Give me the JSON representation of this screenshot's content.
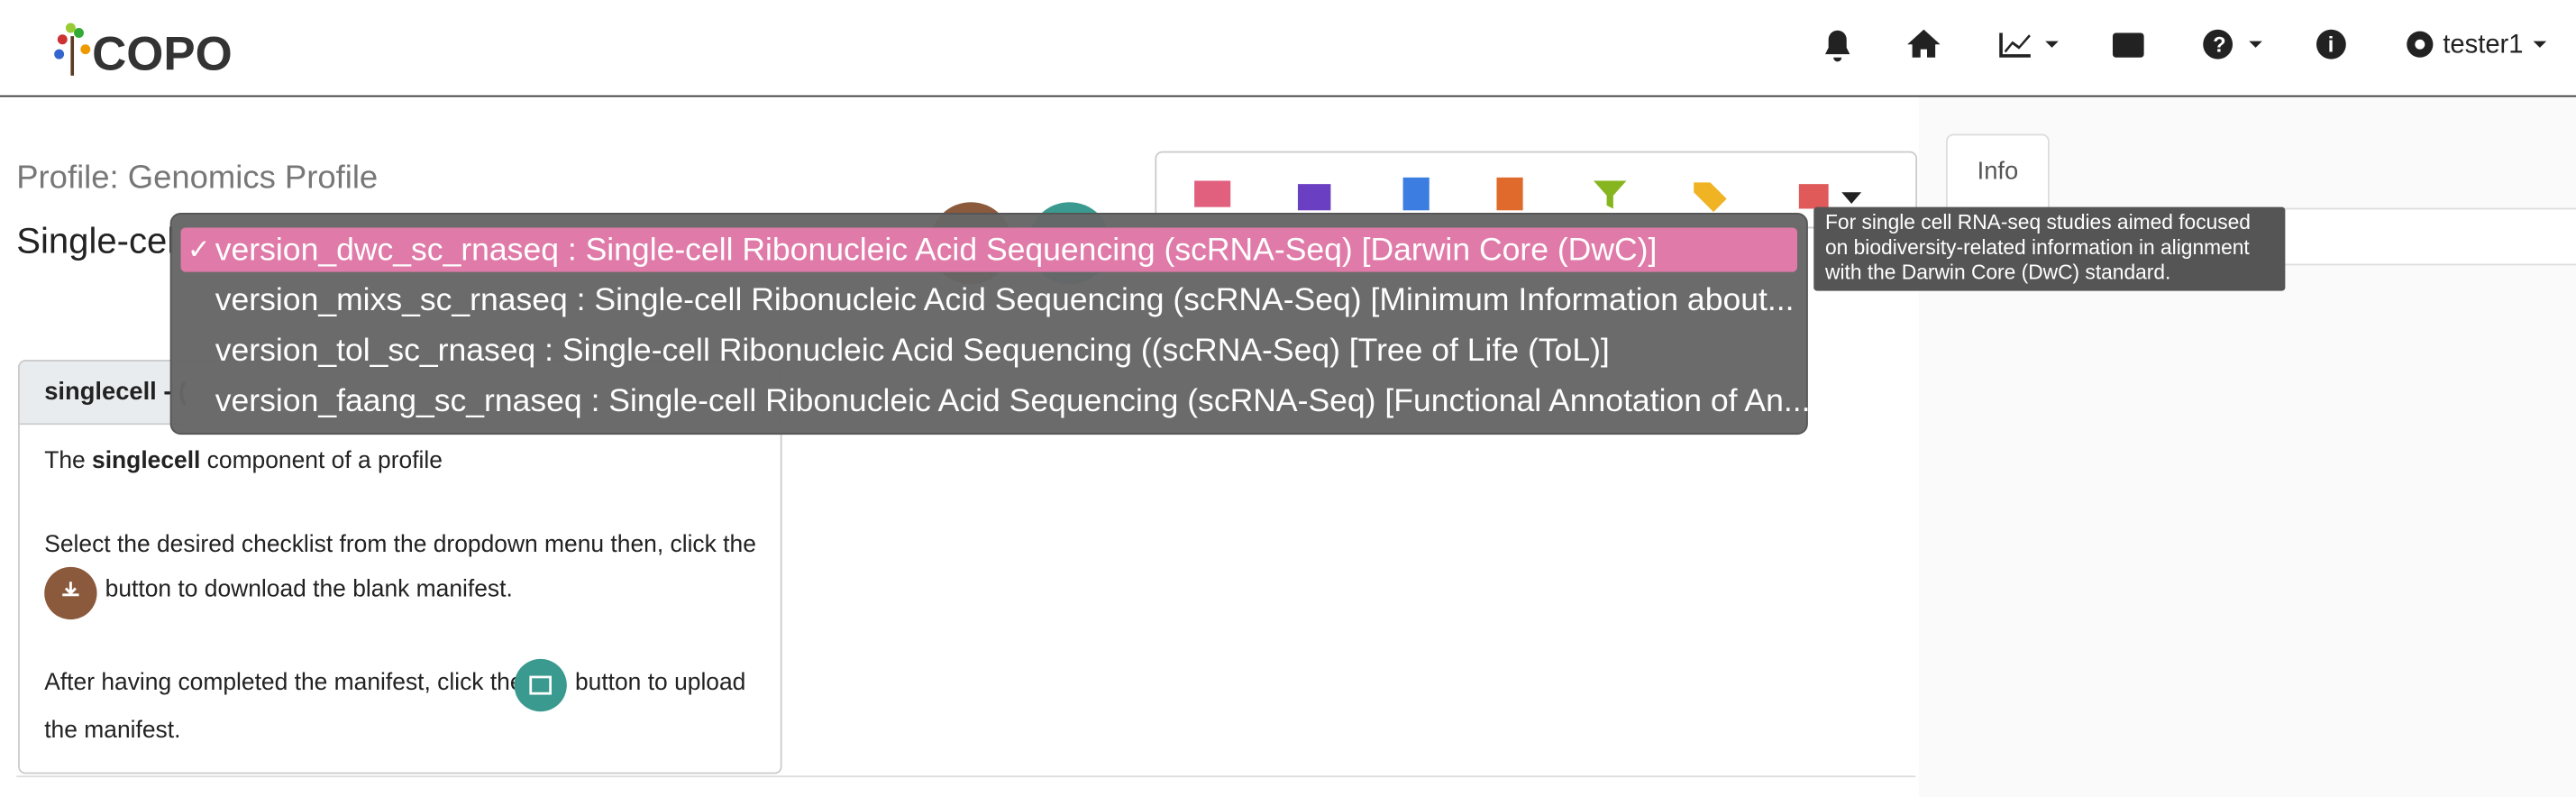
{
  "header": {
    "logo": "COPO",
    "user": "tester1"
  },
  "profile": {
    "title": "Profile: Genomics Profile",
    "heading": "Single-cel"
  },
  "dropdown": {
    "checkmark": "✓",
    "options": [
      "version_dwc_sc_rnaseq : Single-cell Ribonucleic Acid Sequencing (scRNA-Seq) [Darwin Core (DwC)]",
      "version_mixs_sc_rnaseq : Single-cell Ribonucleic Acid Sequencing (scRNA-Seq) [Minimum Information about...",
      "version_tol_sc_rnaseq : Single-cell Ribonucleic Acid Sequencing ((scRNA-Seq) [Tree of Life (ToL)]",
      "version_faang_sc_rnaseq : Single-cell Ribonucleic Acid Sequencing (scRNA-Seq) [Functional Annotation of An..."
    ],
    "tooltip": [
      "For single cell RNA-seq studies aimed focused",
      "on biodiversity-related information in alignment",
      "with the Darwin Core (DwC) standard."
    ]
  },
  "info_tab": "Info",
  "card": {
    "header": "singlecell - (",
    "intro": [
      "The",
      "singlecell",
      "component of a profile"
    ],
    "download": [
      "Select the desired checklist from the dropdown menu then, click the",
      "button to download the blank manifest."
    ],
    "upload": [
      "After having completed the manifest, click the",
      "button to upload",
      "the manifest."
    ]
  }
}
